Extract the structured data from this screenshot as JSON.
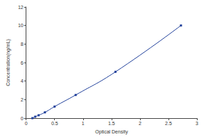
{
  "chart_data": {
    "type": "line",
    "x": [
      0.11,
      0.16,
      0.22,
      0.33,
      0.5,
      0.87,
      1.57,
      2.72
    ],
    "values": [
      0,
      0.156,
      0.312,
      0.625,
      1.25,
      2.5,
      5,
      10
    ],
    "x_label": "Optical Density",
    "y_label": "Concentration(ng/mL)",
    "xlim": [
      0,
      3
    ],
    "xticks": [
      0,
      0.5,
      1,
      1.5,
      2,
      2.5,
      3
    ],
    "ylim": [
      0,
      12
    ],
    "yticks": [
      0,
      2,
      4,
      6,
      8,
      10,
      12
    ],
    "color": "#1f3f9a",
    "marker": "square",
    "line_style": "solid",
    "grid": false
  }
}
